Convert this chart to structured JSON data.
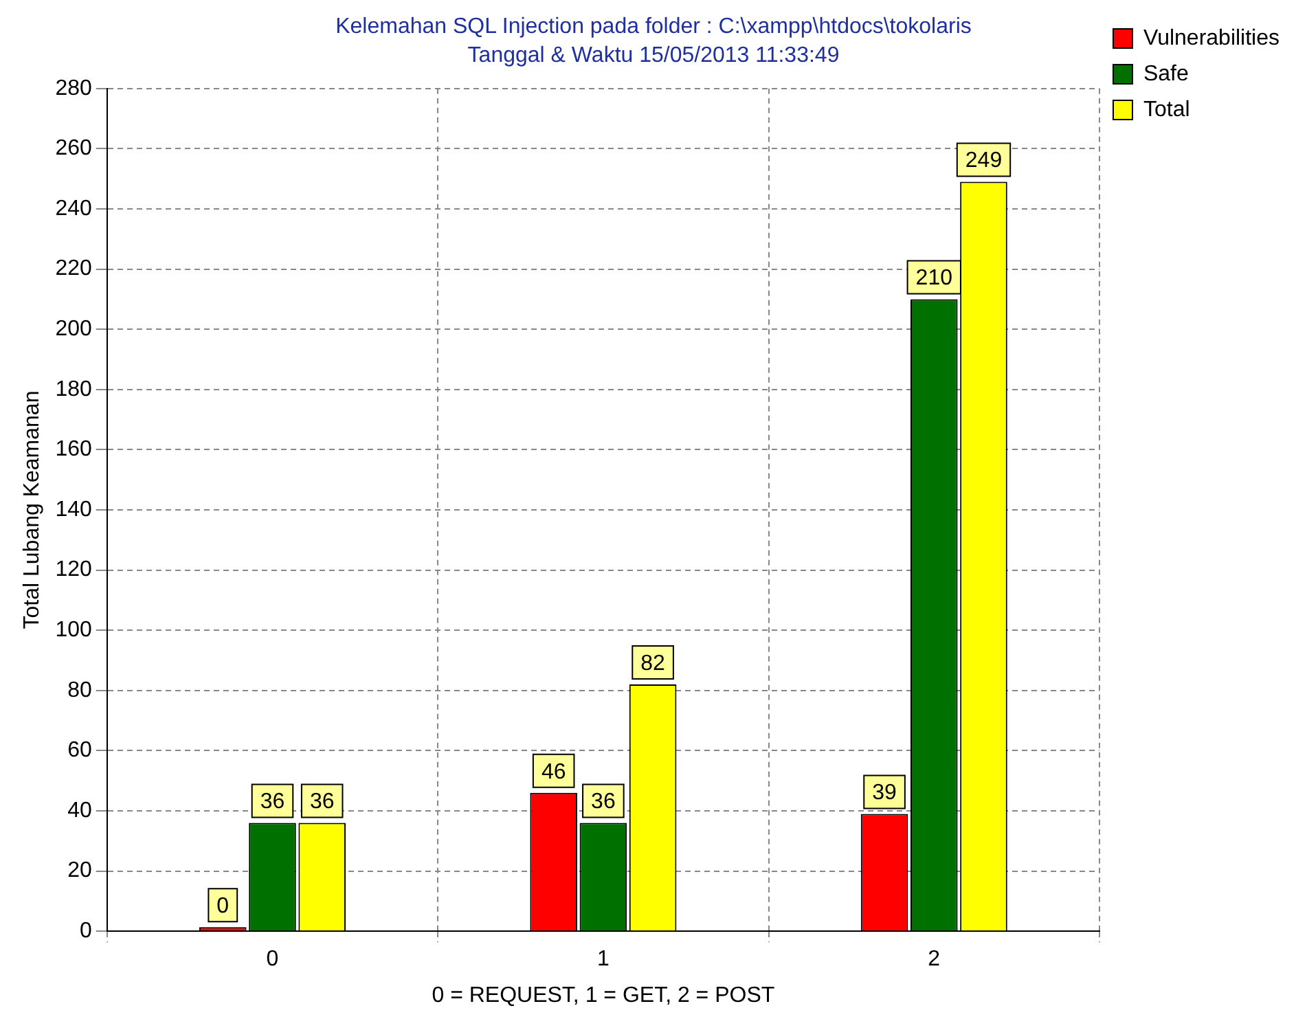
{
  "chart_data": {
    "type": "bar",
    "title": "Kelemahan SQL Injection pada folder : C:\\xampp\\htdocs\\tokolaris",
    "subtitle": "Tanggal & Waktu 15/05/2013 11:33:49",
    "xlabel": "0 = REQUEST, 1 = GET, 2 = POST",
    "ylabel": "Total Lubang Keamanan",
    "categories": [
      "0",
      "1",
      "2"
    ],
    "series": [
      {
        "name": "Vulnerabilities",
        "color": "#ff0000",
        "values": [
          0,
          46,
          39
        ]
      },
      {
        "name": "Safe",
        "color": "#007000",
        "values": [
          36,
          36,
          210
        ]
      },
      {
        "name": "Total",
        "color": "#ffff00",
        "values": [
          36,
          82,
          249
        ]
      }
    ],
    "ylim": [
      0,
      280
    ],
    "yticks": [
      0,
      20,
      40,
      60,
      80,
      100,
      120,
      140,
      160,
      180,
      200,
      220,
      240,
      260,
      280
    ],
    "grid": true,
    "legend": "top right",
    "data_labels": true
  }
}
